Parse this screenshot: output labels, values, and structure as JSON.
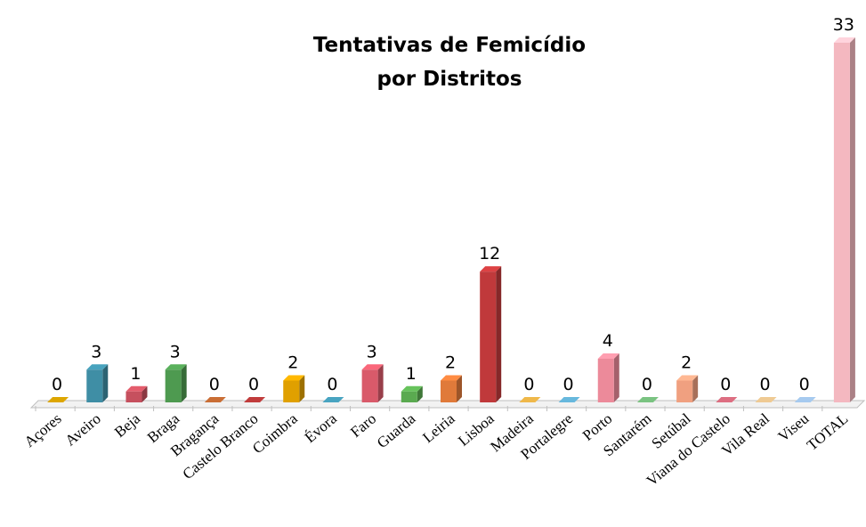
{
  "chart_data": {
    "type": "bar3d",
    "title": [
      "Tentativas de Femicídio",
      "por Distritos"
    ],
    "categories": [
      "Açores",
      "Aveiro",
      "Beja",
      "Braga",
      "Bragança",
      "Castelo Branco",
      "Coimbra",
      "Évora",
      "Faro",
      "Guarda",
      "Leiria",
      "Lisboa",
      "Madeira",
      "Portalegre",
      "Porto",
      "Santarém",
      "Setúbal",
      "Viana do Castelo",
      "Vila Real",
      "Viseu",
      "TOTAL"
    ],
    "values": [
      0,
      3,
      1,
      3,
      0,
      0,
      2,
      0,
      3,
      1,
      2,
      12,
      0,
      0,
      4,
      0,
      2,
      0,
      0,
      0,
      33
    ],
    "colors": [
      "#c09000",
      "#3f8ea5",
      "#c6505e",
      "#4e9a50",
      "#b0602e",
      "#a83434",
      "#e0a000",
      "#3f8fa8",
      "#d95a6a",
      "#5aaa50",
      "#e07a3a",
      "#c0393b",
      "#d0a040",
      "#5aa0c0",
      "#ec8a9a",
      "#6aaa70",
      "#f0a080",
      "#c06070",
      "#d0b080",
      "#90b0d0",
      "#f4b8c0"
    ],
    "ylim": [
      0,
      33
    ]
  }
}
